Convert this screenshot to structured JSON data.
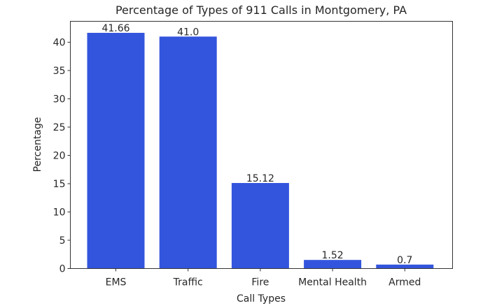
{
  "chart_data": {
    "type": "bar",
    "title": "Percentage of Types of 911 Calls in Montgomery, PA",
    "xlabel": "Call Types",
    "ylabel": "Percentage",
    "categories": [
      "EMS",
      "Traffic",
      "Fire",
      "Mental Health",
      "Armed"
    ],
    "values": [
      41.66,
      41.0,
      15.12,
      1.52,
      0.7
    ],
    "value_labels": [
      "41.66",
      "41.0",
      "15.12",
      "1.52",
      "0.7"
    ],
    "ylim": [
      0,
      43.7
    ],
    "yticks": [
      0,
      5,
      10,
      15,
      20,
      25,
      30,
      35,
      40
    ],
    "bar_color": "#3355dd",
    "grid": false,
    "legend": null
  }
}
